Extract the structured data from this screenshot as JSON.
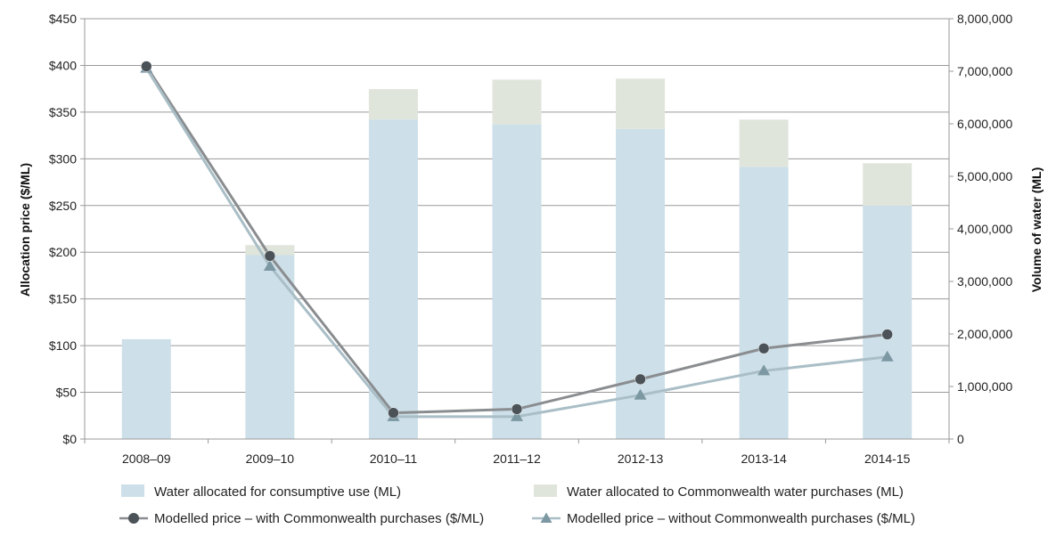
{
  "chart_data": {
    "type": "bar",
    "categories": [
      "2008–09",
      "2009–10",
      "2010–11",
      "2011–12",
      "2012-13",
      "2013-14",
      "2014-15"
    ],
    "y_left": {
      "label": "Allocation price ($/ML)",
      "range": [
        0,
        450
      ],
      "ticks": [
        "$0",
        "$50",
        "$100",
        "$150",
        "$200",
        "$250",
        "$300",
        "$350",
        "$400",
        "$450"
      ]
    },
    "y_right": {
      "label": "Volume of water (ML)",
      "range": [
        0,
        8000000
      ],
      "ticks": [
        "0",
        "1,000,000",
        "2,000,000",
        "3,000,000",
        "4,000,000",
        "5,000,000",
        "6,000,000",
        "7,000,000",
        "8,000,000"
      ]
    },
    "grid": true,
    "legend_position": "bottom",
    "bar_series": [
      {
        "name": "Water allocated for consumptive use (ML)",
        "color": "#cddfe8",
        "axis": "right",
        "values": [
          1900000,
          3500000,
          6080000,
          5990000,
          5900000,
          5180000,
          4440000
        ]
      },
      {
        "name": "Water allocated to Commonwealth water purchases (ML)",
        "color": "#e0e5dc",
        "axis": "right",
        "values": [
          0,
          190000,
          580000,
          850000,
          960000,
          900000,
          810000
        ]
      }
    ],
    "line_series": [
      {
        "name": "Modelled price – with Commonwealth purchases ($/ML)",
        "color": "#8a8d90",
        "marker_color": "#4b5258",
        "marker": "circle",
        "axis": "left",
        "values": [
          399,
          196,
          28,
          32,
          64,
          97,
          112
        ]
      },
      {
        "name": "Modelled price – without Commonwealth purchases ($/ML)",
        "color": "#a9bec6",
        "marker_color": "#7c98a3",
        "marker": "triangle",
        "axis": "left",
        "values": [
          397,
          185,
          24,
          24,
          47,
          73,
          88
        ]
      }
    ]
  }
}
